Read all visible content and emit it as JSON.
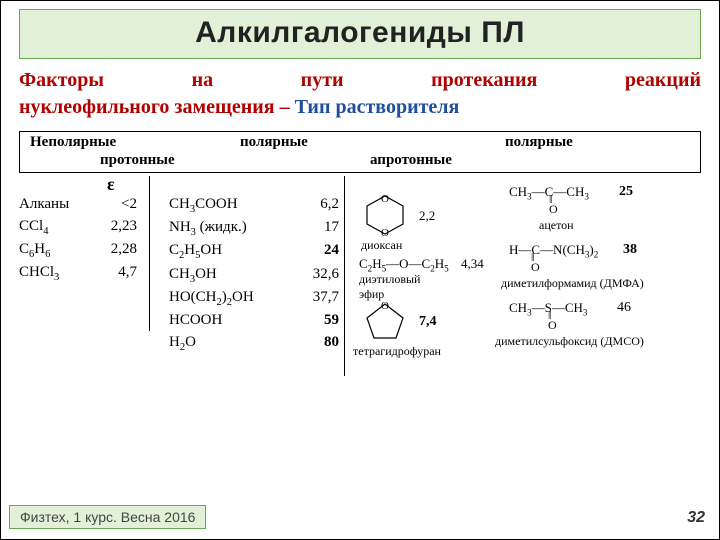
{
  "title": "Алкилгалогениды ПЛ",
  "subtitle": {
    "part1": "Факторы на пути протекания реакций нуклеофильного замещения",
    "dash": " – ",
    "part2": "Тип растворителя"
  },
  "header": {
    "col1": "Неполярные",
    "col2": "полярные",
    "col3": "полярные",
    "sub1": "протонные",
    "sub2": "апротонные"
  },
  "epsilon": "ε",
  "nonpolar": [
    {
      "name": "Алканы",
      "val": "<2"
    },
    {
      "name": "CCl4",
      "val": "2,23",
      "sub": [
        "CCl",
        "4"
      ]
    },
    {
      "name": "C6H6",
      "val": "2,28",
      "sub": [
        "C",
        "6",
        "H",
        "6"
      ]
    },
    {
      "name": "CHCl3",
      "val": "4,7",
      "sub": [
        "CHCl",
        "3"
      ]
    }
  ],
  "protic": [
    {
      "name": "CH3COOH",
      "val": "6,2",
      "bold": false,
      "html": "CH<sub>3</sub>COOH"
    },
    {
      "name": "NH3 (жидк.)",
      "val": "17",
      "bold": false,
      "html": "NH<sub>3</sub> (жидк.)"
    },
    {
      "name": "C2H5OH",
      "val": "24",
      "bold": true,
      "html": "C<sub>2</sub>H<sub>5</sub>OH"
    },
    {
      "name": "CH3OH",
      "val": "32,6",
      "bold": false,
      "html": "CH<sub>3</sub>OH"
    },
    {
      "name": "HO(CH2)2OH",
      "val": "37,7",
      "bold": false,
      "html": "HO(CH<sub>2</sub>)<sub>2</sub>OH"
    },
    {
      "name": "HCOOH",
      "val": "59",
      "bold": true,
      "html": "HCOOH"
    },
    {
      "name": "H2O",
      "val": "80",
      "bold": true,
      "html": "H<sub>2</sub>O"
    }
  ],
  "aprotic_left": [
    {
      "label": "диоксан",
      "val": "2,2"
    },
    {
      "label": "диэтиловый эфир",
      "val": "4,34",
      "formula": "C<sub>2</sub>H<sub>5</sub>—O—C<sub>2</sub>H<sub>5</sub>"
    },
    {
      "label": "тетрагидрофуран",
      "val": "7,4"
    }
  ],
  "aprotic_right": [
    {
      "label": "ацетон",
      "val": "25",
      "formula": "CH<sub>3</sub>—C—CH<sub>3</sub>",
      "dbl": "O"
    },
    {
      "label": "диметилформамид (ДМФА)",
      "val": "38",
      "formula": "H—C—N(CH<sub>3</sub>)<sub>2</sub>",
      "dbl": "O"
    },
    {
      "label": "диметилсульфоксид (ДМСО)",
      "val": "46",
      "formula": "CH<sub>3</sub>—S—CH<sub>3</sub>",
      "dbl": "O"
    }
  ],
  "footer": "Физтех, 1 курс. Весна 2016",
  "page": "32"
}
